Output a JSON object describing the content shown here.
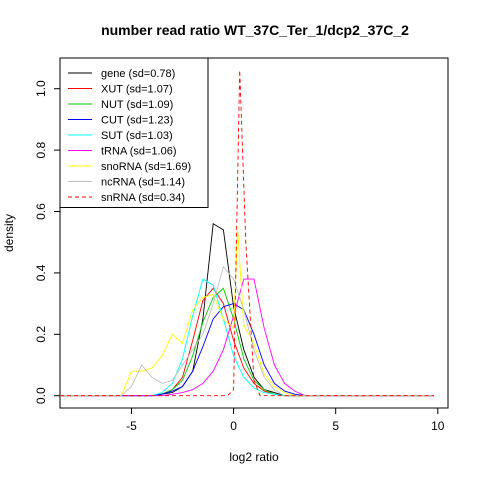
{
  "chart_data": {
    "type": "line",
    "title": "number read ratio WT_37C_Ter_1/dcp2_37C_2",
    "xlabel": "log2 ratio",
    "ylabel": "density",
    "xlim": [
      -8.5,
      10.5
    ],
    "ylim": [
      -0.04,
      1.1
    ],
    "xticks": [
      -5,
      0,
      5,
      10
    ],
    "yticks": [
      0.0,
      0.2,
      0.4,
      0.6,
      0.8,
      1.0
    ],
    "legend_position": "top-left",
    "series": [
      {
        "name": "gene (sd=0.78)",
        "color": "#000000",
        "dashed": false,
        "x": [
          -8.5,
          -4,
          -3,
          -2.5,
          -2,
          -1.5,
          -1,
          -0.5,
          0,
          0.5,
          1,
          1.5,
          2,
          2.5,
          3,
          3.5,
          9.8
        ],
        "y": [
          0,
          0,
          0.01,
          0.03,
          0.08,
          0.25,
          0.56,
          0.54,
          0.29,
          0.15,
          0.06,
          0.02,
          0.01,
          0,
          0,
          0,
          0
        ]
      },
      {
        "name": "XUT (sd=1.07)",
        "color": "#ff0000",
        "dashed": false,
        "x": [
          -8.5,
          -4,
          -3.5,
          -3,
          -2.5,
          -2,
          -1.5,
          -1,
          -0.5,
          0,
          0.5,
          1,
          1.5,
          2,
          2.5,
          3,
          9.8
        ],
        "y": [
          0,
          0,
          0.005,
          0.02,
          0.06,
          0.18,
          0.31,
          0.35,
          0.3,
          0.18,
          0.09,
          0.04,
          0.015,
          0.005,
          0,
          0,
          0
        ]
      },
      {
        "name": "NUT (sd=1.09)",
        "color": "#00cc00",
        "dashed": false,
        "x": [
          -8.5,
          -4,
          -3.5,
          -3,
          -2.5,
          -2,
          -1.5,
          -1,
          -0.5,
          0,
          0.5,
          1,
          1.5,
          2,
          2.5,
          3,
          9.8
        ],
        "y": [
          0,
          0,
          0.005,
          0.02,
          0.05,
          0.13,
          0.24,
          0.32,
          0.35,
          0.25,
          0.12,
          0.05,
          0.02,
          0.005,
          0,
          0,
          0
        ]
      },
      {
        "name": "CUT (sd=1.23)",
        "color": "#0000ff",
        "dashed": false,
        "x": [
          -8.5,
          -4,
          -3.5,
          -3,
          -2.5,
          -2,
          -1.5,
          -1,
          -0.5,
          0,
          0.5,
          1,
          1.5,
          2,
          2.5,
          3,
          3.5,
          9.8
        ],
        "y": [
          0,
          0,
          0.005,
          0.015,
          0.03,
          0.08,
          0.16,
          0.25,
          0.29,
          0.3,
          0.28,
          0.2,
          0.1,
          0.04,
          0.015,
          0.005,
          0,
          0
        ]
      },
      {
        "name": "SUT (sd=1.03)",
        "color": "#00ffff",
        "dashed": false,
        "x": [
          -8.5,
          -4,
          -3.5,
          -3,
          -2.5,
          -2,
          -1.5,
          -1,
          -0.5,
          0,
          0.5,
          1,
          1.5,
          2,
          2.5,
          3,
          9.8
        ],
        "y": [
          0,
          0,
          0.01,
          0.04,
          0.12,
          0.26,
          0.38,
          0.36,
          0.25,
          0.13,
          0.06,
          0.025,
          0.01,
          0.005,
          0,
          0,
          0
        ]
      },
      {
        "name": "tRNA (sd=1.06)",
        "color": "#ff00ff",
        "dashed": false,
        "x": [
          -8.5,
          -4,
          -3.5,
          -3,
          -2.5,
          -2,
          -1.5,
          -1,
          -0.5,
          0,
          0.5,
          1,
          1.5,
          2,
          2.5,
          3,
          3.5,
          9.8
        ],
        "y": [
          0,
          0,
          0,
          0.005,
          0.01,
          0.02,
          0.04,
          0.08,
          0.15,
          0.26,
          0.38,
          0.38,
          0.22,
          0.1,
          0.04,
          0.015,
          0,
          0
        ]
      },
      {
        "name": "snoRNA (sd=1.69)",
        "color": "#ffff00",
        "dashed": false,
        "x": [
          -8.5,
          -5.5,
          -5,
          -4.5,
          -4,
          -3.5,
          -3,
          -2.5,
          -2,
          -1.5,
          -1,
          -0.5,
          0,
          0.2,
          0.5,
          1,
          1.5,
          2,
          2.5,
          3,
          9.8
        ],
        "y": [
          0,
          0,
          0.08,
          0.08,
          0.09,
          0.13,
          0.2,
          0.17,
          0.28,
          0.32,
          0.33,
          0.25,
          0.22,
          0.54,
          0.23,
          0.17,
          0.07,
          0.03,
          0.01,
          0,
          0
        ]
      },
      {
        "name": "ncRNA (sd=1.14)",
        "color": "#bebebe",
        "dashed": false,
        "x": [
          -8.5,
          -5.5,
          -5,
          -4.5,
          -4,
          -3.5,
          -3,
          -2.5,
          -2,
          -1.5,
          -1,
          -0.5,
          0,
          0.5,
          1,
          1.5,
          2,
          2.5,
          9.8
        ],
        "y": [
          0,
          0,
          0.03,
          0.1,
          0.06,
          0.04,
          0.05,
          0.1,
          0.15,
          0.2,
          0.3,
          0.42,
          0.38,
          0.28,
          0.15,
          0.06,
          0.02,
          0,
          0
        ]
      },
      {
        "name": "snRNA (sd=0.34)",
        "color": "#ff0000",
        "dashed": true,
        "x": [
          -8.5,
          -0.3,
          0,
          0.3,
          0.6,
          1,
          1.3,
          9.8
        ],
        "y": [
          0,
          0,
          0.02,
          1.06,
          0.5,
          0.05,
          0,
          0
        ]
      }
    ]
  }
}
